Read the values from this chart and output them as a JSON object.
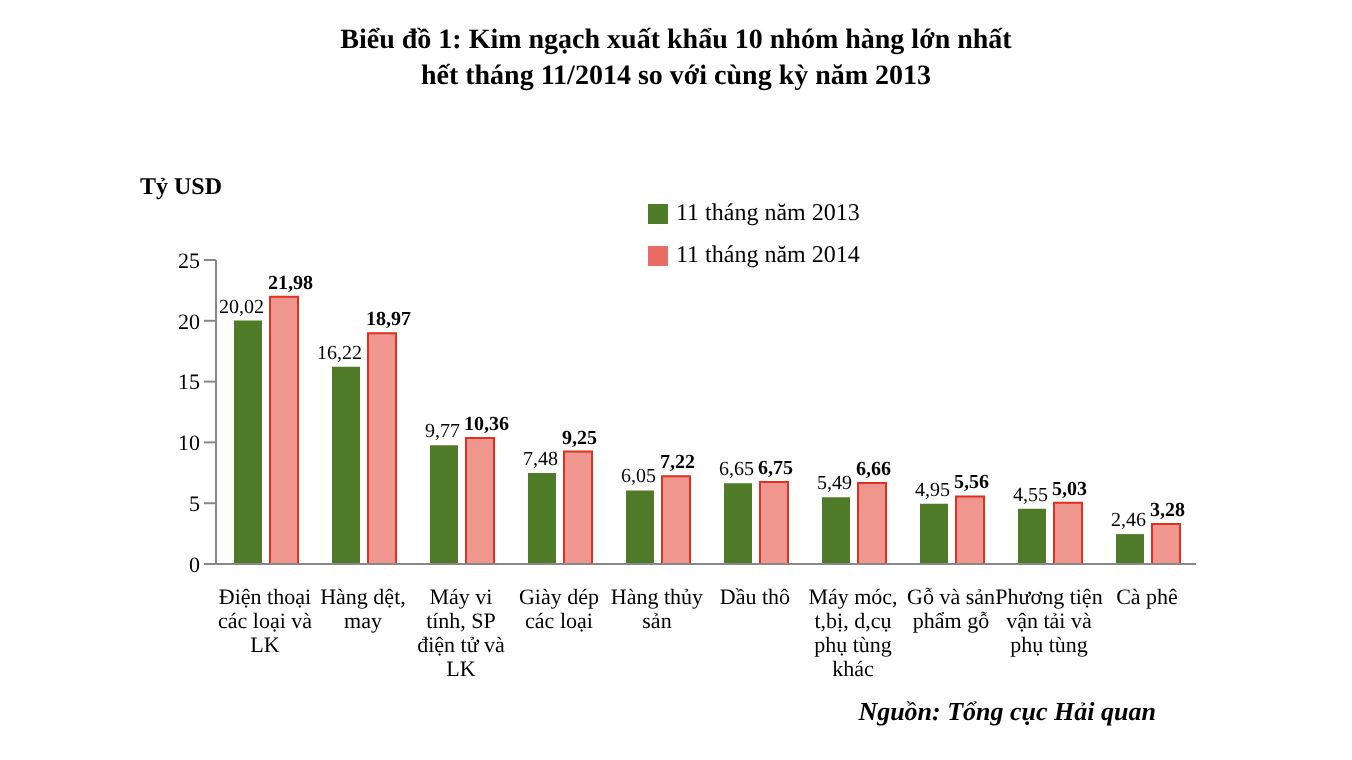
{
  "chart_data": {
    "type": "bar",
    "title": "Biểu đồ 1: Kim ngạch xuất khẩu 10 nhóm hàng lớn nhất\nhết tháng 11/2014 so với cùng kỳ năm 2013",
    "ylabel": "Tỷ USD",
    "categories": [
      "Điện thoại các loại và LK",
      "Hàng dệt, may",
      "Máy vi tính, SP điện tử và LK",
      "Giày dép các loại",
      "Hàng thủy sản",
      "Dầu thô",
      "Máy móc, t,bị, d,cụ phụ tùng khác",
      "Gỗ và sản phẩm gỗ",
      "Phương tiện vận tải và phụ tùng",
      "Cà phê"
    ],
    "series": [
      {
        "name": "11 tháng năm 2013",
        "color": "#4f7a28",
        "values": [
          20.02,
          16.22,
          9.77,
          7.48,
          6.05,
          6.65,
          5.49,
          4.95,
          4.55,
          2.46
        ],
        "value_labels": [
          "20,02",
          "16,22",
          "9,77",
          "7,48",
          "6,05",
          "6,65",
          "5,49",
          "4,95",
          "4,55",
          "2,46"
        ]
      },
      {
        "name": "11 tháng năm 2014",
        "color": "#e03020",
        "values": [
          21.98,
          18.97,
          10.36,
          9.25,
          7.22,
          6.75,
          6.66,
          5.56,
          5.03,
          3.28
        ],
        "value_labels": [
          "21,98",
          "18,97",
          "10,36",
          "9,25",
          "7,22",
          "6,75",
          "6,66",
          "5,56",
          "5,03",
          "3,28"
        ]
      }
    ],
    "ylim": [
      0,
      25
    ],
    "yticks": [
      0,
      5,
      10,
      15,
      20,
      25
    ],
    "grid": false,
    "legend": "top right",
    "annotations": [
      "Nguồn: Tổng cục Hải quan"
    ]
  }
}
